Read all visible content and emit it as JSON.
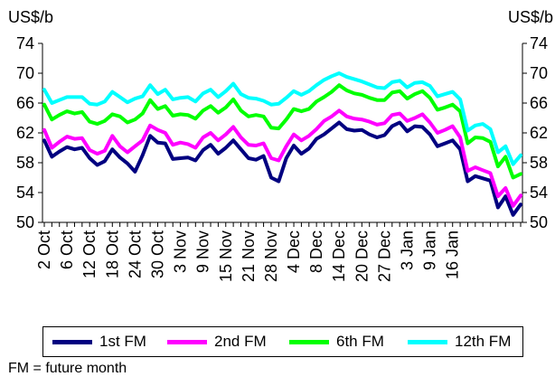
{
  "units": {
    "left": "US$/b",
    "right": "US$/b"
  },
  "footnote": "FM = future month",
  "chart_data": {
    "type": "line",
    "ylim": [
      50,
      74
    ],
    "yticks": [
      50,
      54,
      58,
      62,
      66,
      70,
      74
    ],
    "xtick_labels": [
      "2 Oct",
      "6 Oct",
      "12 Oct",
      "18 Oct",
      "24 Oct",
      "30 Oct",
      "3 Nov",
      "9 Nov",
      "15 Nov",
      "21 Nov",
      "28 Nov",
      "4 Dec",
      "8 Dec",
      "14 Dec",
      "20 Dec",
      "27 Dec",
      "3 Jan",
      "9 Jan",
      "16 Jan"
    ],
    "xtick_positions": [
      0,
      3,
      6,
      9,
      12,
      15,
      18,
      21,
      24,
      27,
      30,
      33,
      36,
      39,
      42,
      45,
      48,
      51,
      54
    ],
    "grid": false,
    "legend_position": "bottom",
    "series": [
      {
        "name": "1st FM",
        "color": "#000080",
        "values": [
          61.0,
          58.8,
          59.5,
          60.1,
          59.8,
          60.0,
          58.6,
          57.7,
          58.2,
          59.8,
          58.7,
          57.9,
          56.8,
          59.0,
          61.6,
          60.7,
          60.6,
          58.5,
          58.6,
          58.7,
          58.3,
          59.7,
          60.4,
          59.2,
          60.0,
          61.0,
          59.8,
          58.6,
          58.4,
          58.9,
          56.0,
          55.5,
          58.6,
          60.3,
          59.2,
          59.9,
          61.2,
          61.8,
          62.6,
          63.4,
          62.5,
          62.3,
          62.4,
          61.8,
          61.4,
          61.7,
          62.9,
          63.4,
          62.2,
          62.9,
          62.8,
          61.8,
          60.2,
          60.6,
          61.0,
          59.8,
          55.5,
          56.2,
          55.9,
          55.6,
          52.0,
          53.5,
          51.0,
          52.4
        ]
      },
      {
        "name": "2nd FM",
        "color": "#ff00ff",
        "values": [
          62.4,
          60.0,
          60.8,
          61.5,
          61.2,
          61.3,
          59.7,
          59.2,
          59.6,
          61.6,
          60.2,
          59.4,
          60.2,
          61.0,
          63.0,
          62.4,
          62.0,
          60.4,
          60.7,
          60.5,
          60.0,
          61.4,
          62.0,
          61.0,
          61.8,
          62.8,
          61.4,
          60.4,
          60.3,
          60.6,
          58.6,
          58.3,
          60.2,
          61.8,
          61.0,
          61.6,
          62.5,
          63.6,
          64.2,
          65.0,
          64.2,
          63.9,
          63.8,
          63.5,
          63.1,
          63.3,
          64.4,
          64.6,
          63.6,
          64.0,
          64.5,
          63.4,
          62.0,
          62.4,
          62.9,
          61.4,
          56.9,
          57.4,
          57.0,
          56.6,
          53.5,
          54.6,
          52.2,
          53.6
        ]
      },
      {
        "name": "6th FM",
        "color": "#00ff00",
        "values": [
          65.8,
          63.8,
          64.4,
          64.9,
          64.6,
          64.8,
          63.5,
          63.2,
          63.6,
          64.5,
          64.2,
          63.4,
          63.8,
          64.6,
          66.4,
          65.2,
          65.6,
          64.3,
          64.5,
          64.4,
          63.9,
          65.0,
          65.6,
          64.7,
          65.4,
          66.5,
          65.0,
          64.2,
          64.4,
          64.2,
          62.7,
          62.6,
          63.8,
          65.2,
          64.9,
          65.2,
          66.2,
          66.8,
          67.5,
          68.4,
          67.7,
          67.3,
          67.1,
          66.7,
          66.4,
          66.4,
          67.4,
          67.6,
          66.6,
          67.2,
          67.6,
          66.7,
          65.1,
          65.4,
          65.8,
          64.9,
          60.6,
          61.4,
          61.3,
          60.8,
          57.5,
          58.8,
          56.0,
          56.5
        ]
      },
      {
        "name": "12th FM",
        "color": "#00ffff",
        "values": [
          67.8,
          66.0,
          66.4,
          66.8,
          66.8,
          66.8,
          65.9,
          65.8,
          66.2,
          67.5,
          66.8,
          66.1,
          66.6,
          66.9,
          68.4,
          67.2,
          67.8,
          66.5,
          66.7,
          66.8,
          66.2,
          67.3,
          67.8,
          66.8,
          67.6,
          68.6,
          67.2,
          66.7,
          66.6,
          66.3,
          65.8,
          65.9,
          66.7,
          67.6,
          67.1,
          67.6,
          68.4,
          69.1,
          69.6,
          70.0,
          69.5,
          69.2,
          68.9,
          68.5,
          68.1,
          68.0,
          68.8,
          69.0,
          68.1,
          68.7,
          68.8,
          68.3,
          66.9,
          67.2,
          67.5,
          66.5,
          62.3,
          63.0,
          63.2,
          62.5,
          59.4,
          60.2,
          57.8,
          59.0
        ]
      }
    ]
  }
}
